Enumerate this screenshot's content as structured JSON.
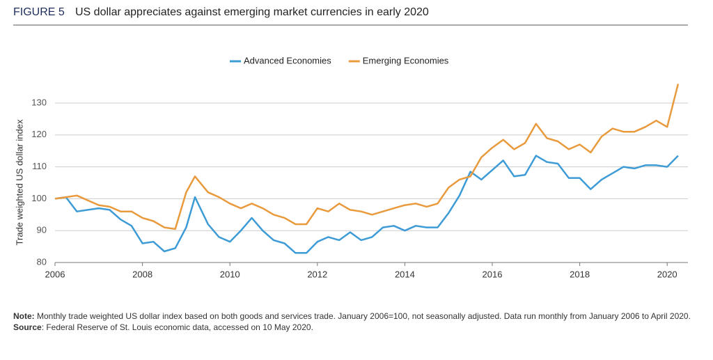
{
  "chart_data": {
    "type": "line",
    "figure_label": "FIGURE 5",
    "title": "US dollar appreciates against emerging market currencies in early 2020",
    "y_label": "Trade weighted US dollar index",
    "note_label": "Note:",
    "note": "Monthly trade weighted US dollar index based on both goods and services trade. January 2006=100, not seasonally adjusted. Data run monthly from January 2006 to April 2020.",
    "source_label": "Source",
    "source": ": Federal Reserve of St. Louis economic data, accessed on 10 May 2020.",
    "x": [
      2006,
      2006.25,
      2006.5,
      2006.75,
      2007,
      2007.25,
      2007.5,
      2007.75,
      2008,
      2008.25,
      2008.5,
      2008.75,
      2009,
      2009.2,
      2009.5,
      2009.75,
      2010,
      2010.25,
      2010.5,
      2010.75,
      2011,
      2011.25,
      2011.5,
      2011.75,
      2012,
      2012.25,
      2012.5,
      2012.75,
      2013,
      2013.25,
      2013.5,
      2013.75,
      2014,
      2014.25,
      2014.5,
      2014.75,
      2015,
      2015.25,
      2015.5,
      2015.75,
      2016,
      2016.25,
      2016.5,
      2016.75,
      2017,
      2017.25,
      2017.5,
      2017.75,
      2018,
      2018.25,
      2018.5,
      2018.75,
      2019,
      2019.25,
      2019.5,
      2019.75,
      2020,
      2020.25
    ],
    "series": [
      {
        "name": "Advanced Economies",
        "color": "#3d9bd6",
        "values": [
          100,
          100.5,
          96,
          96.5,
          97,
          96.5,
          93.5,
          91.5,
          86,
          86.5,
          83.5,
          84.5,
          91,
          100.5,
          92,
          88,
          86.5,
          90,
          94,
          90,
          87,
          86,
          83,
          83,
          86.5,
          88,
          87,
          89.5,
          87,
          88,
          91,
          91.5,
          90,
          91.5,
          91,
          91,
          95.5,
          101,
          108.5,
          106,
          109,
          112,
          107,
          107.5,
          113.5,
          111.5,
          111,
          106.5,
          106.5,
          103,
          106,
          108,
          110,
          109.5,
          110.5,
          110.5,
          110,
          113.5
        ]
      },
      {
        "name": "Emerging Economies",
        "color": "#e89a3c",
        "values": [
          100,
          100.5,
          101,
          99.5,
          98,
          97.5,
          96,
          96,
          94,
          93,
          91,
          90.5,
          102,
          107,
          102,
          100.5,
          98.5,
          97,
          98.5,
          97,
          95,
          94,
          92,
          92,
          97,
          96,
          98.5,
          96.5,
          96,
          95,
          96,
          97,
          98,
          98.5,
          97.5,
          98.5,
          103.5,
          106,
          107,
          113,
          116,
          118.5,
          115.5,
          117.5,
          123.5,
          119,
          118,
          115.5,
          117,
          114.5,
          119.5,
          122,
          121,
          121,
          122.5,
          124.5,
          122.5,
          136
        ]
      }
    ],
    "xlim": [
      2006,
      2020.33
    ],
    "xticks": [
      2006,
      2008,
      2010,
      2012,
      2014,
      2016,
      2018,
      2020
    ],
    "ylim": [
      80,
      137
    ],
    "yticks": [
      80,
      90,
      100,
      110,
      120,
      130
    ],
    "grid": true,
    "legend": "top"
  }
}
